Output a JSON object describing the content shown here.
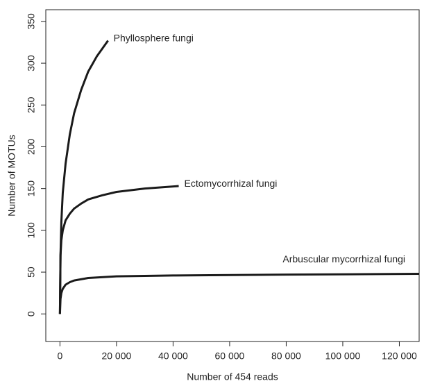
{
  "chart_data": {
    "type": "line",
    "xlabel": "Number of 454 reads",
    "ylabel": "Number of MOTUs",
    "xlim": [
      -5000,
      127000
    ],
    "ylim": [
      -33,
      364
    ],
    "xticks": [
      0,
      {
        "value": 20000,
        "label": "20 000"
      },
      {
        "value": 40000,
        "label": "40 000"
      },
      {
        "value": 60000,
        "label": "60 000"
      },
      {
        "value": 80000,
        "label": "80 000"
      },
      {
        "value": 100000,
        "label": "100 000"
      },
      {
        "value": 120000,
        "label": "120 000"
      }
    ],
    "yticks": [
      0,
      50,
      100,
      150,
      200,
      250,
      300,
      350
    ],
    "color": "#1a1a1a",
    "series": [
      {
        "name": "Phyllosphere fungi",
        "x": [
          0,
          200,
          500,
          1000,
          2000,
          3500,
          5000,
          7500,
          10000,
          13000,
          17000
        ],
        "values": [
          0,
          70,
          110,
          145,
          180,
          215,
          240,
          268,
          290,
          308,
          327
        ]
      },
      {
        "name": "Ectomycorrhizal fungi",
        "x": [
          0,
          200,
          500,
          1000,
          2000,
          3500,
          5000,
          7500,
          10000,
          15000,
          20000,
          30000,
          42000
        ],
        "values": [
          0,
          70,
          88,
          100,
          112,
          120,
          126,
          132,
          137,
          142,
          146,
          150,
          153
        ]
      },
      {
        "name": "Arbuscular mycorrhizal fungi",
        "x": [
          0,
          200,
          500,
          1000,
          2000,
          3500,
          5000,
          10000,
          20000,
          40000,
          80000,
          127000
        ],
        "values": [
          0,
          18,
          25,
          30,
          35,
          38,
          40,
          43,
          45,
          46,
          47,
          48
        ]
      }
    ]
  }
}
